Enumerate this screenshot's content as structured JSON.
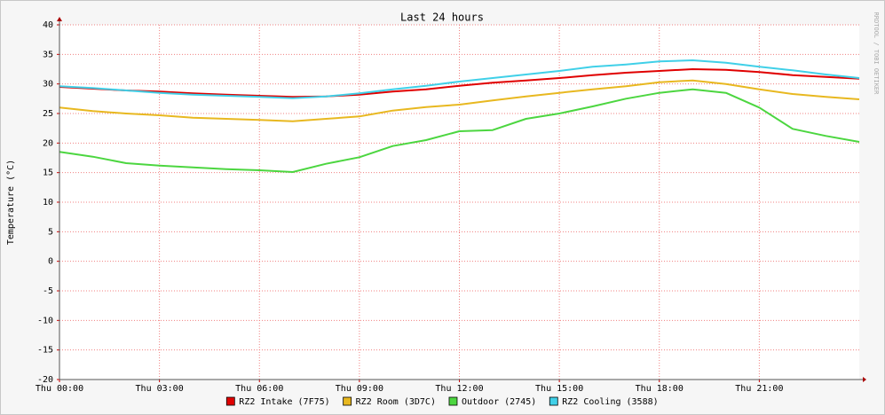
{
  "chart_data": {
    "type": "line",
    "title": "Last 24 hours",
    "y_label": "Temperature (°C)",
    "watermark": "RRDTOOL / TOBI OETIKER",
    "x": [
      0,
      1,
      2,
      3,
      4,
      5,
      6,
      7,
      8,
      9,
      10,
      11,
      12,
      13,
      14,
      15,
      16,
      17,
      18,
      19,
      20,
      21,
      22,
      23,
      24
    ],
    "xlim": [
      0,
      24
    ],
    "xticks": [
      {
        "value": 0,
        "label": "Thu 00:00"
      },
      {
        "value": 3,
        "label": "Thu 03:00"
      },
      {
        "value": 6,
        "label": "Thu 06:00"
      },
      {
        "value": 9,
        "label": "Thu 09:00"
      },
      {
        "value": 12,
        "label": "Thu 12:00"
      },
      {
        "value": 15,
        "label": "Thu 15:00"
      },
      {
        "value": 18,
        "label": "Thu 18:00"
      },
      {
        "value": 21,
        "label": "Thu 21:00"
      }
    ],
    "ylim": [
      -20,
      40
    ],
    "yticks": [
      -20,
      -15,
      -10,
      -5,
      0,
      5,
      10,
      15,
      20,
      25,
      30,
      35,
      40
    ],
    "grid": true,
    "legend": "bottom",
    "series": [
      {
        "name": "RZ2 Intake (7F75)",
        "color": "#e00000",
        "values": [
          29.5,
          29.2,
          28.9,
          28.7,
          28.4,
          28.2,
          28.0,
          27.8,
          27.9,
          28.2,
          28.7,
          29.1,
          29.7,
          30.2,
          30.6,
          31.0,
          31.5,
          31.9,
          32.2,
          32.5,
          32.4,
          32.0,
          31.5,
          31.2,
          30.9
        ]
      },
      {
        "name": "RZ2 Room (3D7C)",
        "color": "#e8b820",
        "values": [
          26.0,
          25.4,
          25.0,
          24.7,
          24.3,
          24.1,
          23.9,
          23.7,
          24.1,
          24.5,
          25.5,
          26.1,
          26.5,
          27.2,
          27.9,
          28.5,
          29.1,
          29.6,
          30.3,
          30.6,
          30.0,
          29.1,
          28.3,
          27.8,
          27.4
        ]
      },
      {
        "name": "Outdoor (2745)",
        "color": "#4cd640",
        "values": [
          18.5,
          17.7,
          16.6,
          16.2,
          15.9,
          15.6,
          15.4,
          15.1,
          16.5,
          17.6,
          19.5,
          20.5,
          22.0,
          22.2,
          24.1,
          25.0,
          26.2,
          27.5,
          28.5,
          29.1,
          28.5,
          26.0,
          22.4,
          21.2,
          20.2
        ]
      },
      {
        "name": "RZ2 Cooling (3588)",
        "color": "#40d0e8",
        "values": [
          29.6,
          29.3,
          28.9,
          28.5,
          28.2,
          28.0,
          27.8,
          27.6,
          27.9,
          28.4,
          29.1,
          29.7,
          30.4,
          31.0,
          31.6,
          32.2,
          32.9,
          33.3,
          33.8,
          34.0,
          33.6,
          32.9,
          32.3,
          31.6,
          31.0
        ]
      }
    ]
  }
}
